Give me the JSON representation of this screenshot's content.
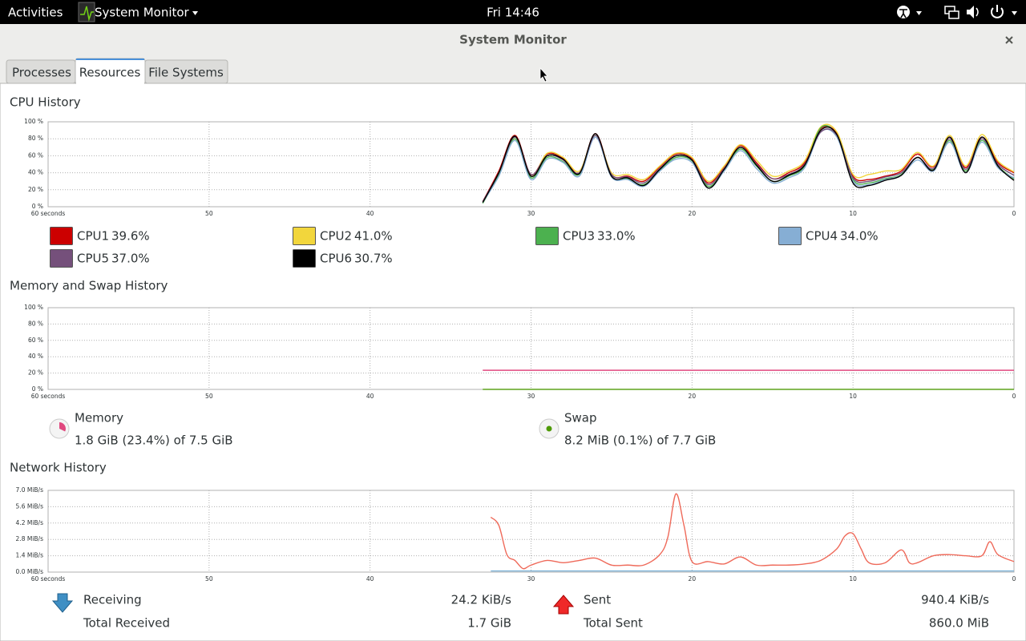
{
  "top_bar": {
    "activities": "Activities",
    "app": "System Monitor",
    "clock": "Fri 14:46"
  },
  "window": {
    "title": "System Monitor",
    "tabs": [
      "Processes",
      "Resources",
      "File Systems"
    ]
  },
  "chart_data": [
    {
      "type": "line",
      "title": "CPU History",
      "xlim": [
        60,
        0
      ],
      "xticks": [
        {
          "value": 60,
          "label": "60 seconds"
        },
        50,
        40,
        30,
        20,
        10,
        0
      ],
      "ylim": [
        0,
        100
      ],
      "yticks": [
        {
          "value": 0,
          "label": "0 %"
        },
        {
          "value": 20,
          "label": "20 %"
        },
        {
          "value": 40,
          "label": "40 %"
        },
        {
          "value": 60,
          "label": "60 %"
        },
        {
          "value": 80,
          "label": "80 %"
        },
        {
          "value": 100,
          "label": "100 %"
        }
      ],
      "grid": true,
      "x": [
        33,
        32,
        31,
        30,
        29,
        28,
        27,
        26,
        25,
        24,
        23,
        22,
        21,
        20,
        19,
        18,
        17,
        16,
        15,
        14,
        13,
        12,
        11,
        10,
        9,
        8,
        7,
        6,
        5,
        4,
        3,
        2,
        1,
        0
      ],
      "series": [
        {
          "name": "CPU1",
          "current": "39.6%",
          "color": "#cc0000",
          "values": [
            6,
            42,
            84,
            38,
            62,
            57,
            40,
            86,
            38,
            36,
            30,
            47,
            62,
            57,
            28,
            47,
            72,
            52,
            33,
            40,
            52,
            92,
            86,
            36,
            32,
            36,
            42,
            62,
            47,
            82,
            46,
            82,
            52,
            40
          ]
        },
        {
          "name": "CPU2",
          "current": "41.0%",
          "color": "#f2d63c",
          "values": [
            5,
            38,
            80,
            36,
            63,
            58,
            42,
            84,
            40,
            38,
            32,
            48,
            63,
            58,
            30,
            48,
            73,
            55,
            36,
            42,
            54,
            94,
            88,
            38,
            38,
            42,
            44,
            64,
            48,
            84,
            48,
            85,
            54,
            41
          ]
        },
        {
          "name": "CPU3",
          "current": "33.0%",
          "color": "#4cb14f",
          "values": [
            4,
            38,
            80,
            34,
            58,
            53,
            38,
            84,
            36,
            33,
            26,
            43,
            58,
            54,
            24,
            43,
            68,
            48,
            30,
            36,
            48,
            93,
            84,
            32,
            28,
            33,
            38,
            58,
            44,
            78,
            42,
            78,
            48,
            33
          ]
        },
        {
          "name": "CPU4",
          "current": "34.0%",
          "color": "#86aed4",
          "values": [
            5,
            36,
            78,
            32,
            56,
            52,
            36,
            82,
            35,
            32,
            24,
            42,
            56,
            52,
            22,
            42,
            66,
            45,
            28,
            34,
            46,
            88,
            82,
            30,
            26,
            32,
            37,
            55,
            42,
            76,
            40,
            76,
            46,
            34
          ]
        },
        {
          "name": "CPU5",
          "current": "37.0%",
          "color": "#75507b",
          "values": [
            6,
            40,
            82,
            38,
            60,
            55,
            40,
            84,
            38,
            35,
            28,
            45,
            60,
            55,
            26,
            45,
            70,
            50,
            33,
            38,
            50,
            88,
            84,
            34,
            30,
            35,
            40,
            58,
            45,
            80,
            44,
            80,
            50,
            37
          ]
        },
        {
          "name": "CPU6",
          "current": "30.7%",
          "color": "#000000",
          "values": [
            5,
            40,
            83,
            36,
            60,
            56,
            39,
            86,
            36,
            34,
            25,
            44,
            60,
            55,
            22,
            44,
            70,
            49,
            30,
            37,
            49,
            90,
            85,
            28,
            25,
            31,
            37,
            58,
            43,
            82,
            40,
            82,
            48,
            31
          ]
        }
      ]
    },
    {
      "type": "line",
      "title": "Memory and Swap History",
      "xlim": [
        60,
        0
      ],
      "xticks": [
        {
          "value": 60,
          "label": "60 seconds"
        },
        50,
        40,
        30,
        20,
        10,
        0
      ],
      "ylim": [
        0,
        100
      ],
      "yticks": [
        {
          "value": 0,
          "label": "0 %"
        },
        {
          "value": 20,
          "label": "20 %"
        },
        {
          "value": 40,
          "label": "40 %"
        },
        {
          "value": 60,
          "label": "60 %"
        },
        {
          "value": 80,
          "label": "80 %"
        },
        {
          "value": 100,
          "label": "100 %"
        }
      ],
      "grid": true,
      "x": [
        33,
        0
      ],
      "series": [
        {
          "name": "Memory",
          "current": "1.8 GiB (23.4%) of 7.5 GiB",
          "color": "#e0487f",
          "values": [
            23.4,
            23.4
          ]
        },
        {
          "name": "Swap",
          "current": "8.2 MiB (0.1%) of 7.7 GiB",
          "color": "#4e9a06",
          "values": [
            0.1,
            0.1
          ]
        }
      ]
    },
    {
      "type": "line",
      "title": "Network History",
      "xlim": [
        60,
        0
      ],
      "xticks": [
        {
          "value": 60,
          "label": "60 seconds"
        },
        50,
        40,
        30,
        20,
        10,
        0
      ],
      "ylim": [
        0,
        7
      ],
      "yticks": [
        {
          "value": 0,
          "label": "0.0 MiB/s"
        },
        {
          "value": 1.4,
          "label": "1.4 MiB/s"
        },
        {
          "value": 2.8,
          "label": "2.8 MiB/s"
        },
        {
          "value": 4.2,
          "label": "4.2 MiB/s"
        },
        {
          "value": 5.6,
          "label": "5.6 MiB/s"
        },
        {
          "value": 7,
          "label": "7.0 MiB/s"
        }
      ],
      "grid": true,
      "x": [
        32.5,
        32,
        31.5,
        31,
        30.5,
        30,
        29,
        28,
        27,
        26,
        25,
        24,
        23,
        22,
        21.5,
        21,
        20.5,
        20,
        19,
        18,
        17,
        16,
        15,
        14,
        13,
        12,
        11,
        10.5,
        10,
        9.5,
        9,
        8,
        7,
        6.5,
        6,
        5,
        4,
        3,
        2,
        1.5,
        1,
        0
      ],
      "series": [
        {
          "name": "Receiving",
          "current": "24.2 KiB/s",
          "total_label": "Total Received",
          "total": "1.7 GiB",
          "color": "#7fb4d8",
          "values": [
            0.1,
            0.1,
            0.1,
            0.1,
            0.1,
            0.1,
            0.1,
            0.1,
            0.1,
            0.1,
            0.1,
            0.1,
            0.1,
            0.1,
            0.1,
            0.1,
            0.1,
            0.1,
            0.1,
            0.1,
            0.1,
            0.1,
            0.1,
            0.1,
            0.1,
            0.1,
            0.1,
            0.1,
            0.1,
            0.1,
            0.1,
            0.1,
            0.1,
            0.1,
            0.1,
            0.1,
            0.1,
            0.1,
            0.1,
            0.1,
            0.1,
            0.1
          ]
        },
        {
          "name": "Sent",
          "current": "940.4 KiB/s",
          "total_label": "Total Sent",
          "total": "860.0 MiB",
          "color": "#ef6a5a",
          "values": [
            4.7,
            4.0,
            1.5,
            1.0,
            0.3,
            0.6,
            1.0,
            0.8,
            1.0,
            1.2,
            0.6,
            0.6,
            0.6,
            1.5,
            3.0,
            6.7,
            4.0,
            0.9,
            0.9,
            0.7,
            1.3,
            0.6,
            0.6,
            0.6,
            0.7,
            1.0,
            2.0,
            3.1,
            3.3,
            2.0,
            0.8,
            0.8,
            1.9,
            0.8,
            0.8,
            1.4,
            1.5,
            1.4,
            1.4,
            2.6,
            1.5,
            0.9
          ]
        }
      ]
    }
  ]
}
